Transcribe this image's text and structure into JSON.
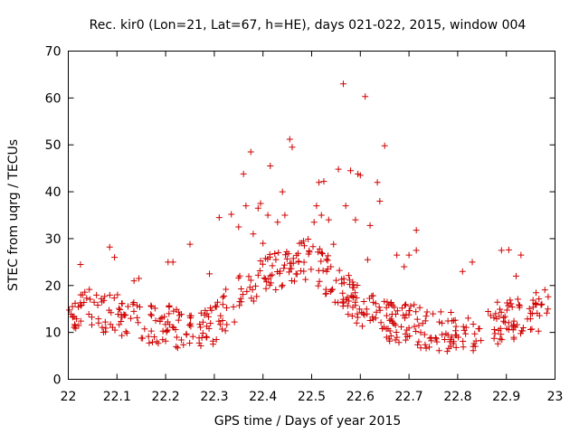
{
  "chart_data": {
    "type": "scatter",
    "title": "Rec. kir0 (Lon=21, Lat=67, h=HE), days 021-022, 2015, window 004",
    "xlabel": "GPS time / Days of year 2015",
    "ylabel": "STEC from uqrg / TECUs",
    "xlim": [
      22,
      23
    ],
    "ylim": [
      0,
      70
    ],
    "x_ticks": [
      22,
      22.1,
      22.2,
      22.3,
      22.4,
      22.5,
      22.6,
      22.7,
      22.8,
      22.9,
      23
    ],
    "x_tick_labels": [
      "22",
      "22.1",
      "22.2",
      "22.3",
      "22.4",
      "22.5",
      "22.6",
      "22.7",
      "22.8",
      "22.9",
      "23"
    ],
    "y_ticks": [
      0,
      10,
      20,
      30,
      40,
      50,
      60,
      70
    ],
    "y_tick_labels": [
      "0",
      "10",
      "20",
      "30",
      "40",
      "50",
      "60",
      "70"
    ],
    "grid": false,
    "legend": "none",
    "marker": "plus",
    "marker_color": "#d00000",
    "outliers": [
      [
        22.025,
        24.5
      ],
      [
        22.085,
        28.2
      ],
      [
        22.095,
        26.0
      ],
      [
        22.135,
        21.0
      ],
      [
        22.145,
        21.5
      ],
      [
        22.205,
        25.0
      ],
      [
        22.215,
        25.0
      ],
      [
        22.25,
        28.8
      ],
      [
        22.29,
        22.5
      ],
      [
        22.31,
        34.5
      ],
      [
        22.335,
        35.2
      ],
      [
        22.35,
        32.5
      ],
      [
        22.36,
        43.8
      ],
      [
        22.365,
        37.0
      ],
      [
        22.375,
        48.5
      ],
      [
        22.38,
        31.0
      ],
      [
        22.39,
        36.5
      ],
      [
        22.395,
        37.5
      ],
      [
        22.4,
        29.0
      ],
      [
        22.41,
        35.0
      ],
      [
        22.415,
        45.5
      ],
      [
        22.43,
        33.5
      ],
      [
        22.44,
        40.0
      ],
      [
        22.445,
        35.0
      ],
      [
        22.455,
        51.2
      ],
      [
        22.46,
        49.5
      ],
      [
        22.475,
        29.0
      ],
      [
        22.485,
        28.5
      ],
      [
        22.505,
        33.5
      ],
      [
        22.51,
        37.0
      ],
      [
        22.515,
        42.0
      ],
      [
        22.52,
        35.0
      ],
      [
        22.525,
        42.2
      ],
      [
        22.535,
        34.0
      ],
      [
        22.545,
        28.8
      ],
      [
        22.555,
        44.8
      ],
      [
        22.565,
        63.0
      ],
      [
        22.57,
        37.0
      ],
      [
        22.58,
        44.5
      ],
      [
        22.59,
        34.0
      ],
      [
        22.595,
        43.8
      ],
      [
        22.6,
        43.5
      ],
      [
        22.61,
        60.3
      ],
      [
        22.615,
        25.5
      ],
      [
        22.62,
        32.8
      ],
      [
        22.635,
        42.0
      ],
      [
        22.64,
        38.0
      ],
      [
        22.65,
        49.8
      ],
      [
        22.675,
        26.5
      ],
      [
        22.69,
        24.0
      ],
      [
        22.7,
        26.5
      ],
      [
        22.715,
        31.8
      ],
      [
        22.715,
        27.5
      ],
      [
        22.81,
        23.0
      ],
      [
        22.83,
        25.0
      ],
      [
        22.89,
        27.5
      ],
      [
        22.905,
        27.6
      ],
      [
        22.92,
        22.0
      ],
      [
        22.93,
        26.5
      ]
    ]
  }
}
